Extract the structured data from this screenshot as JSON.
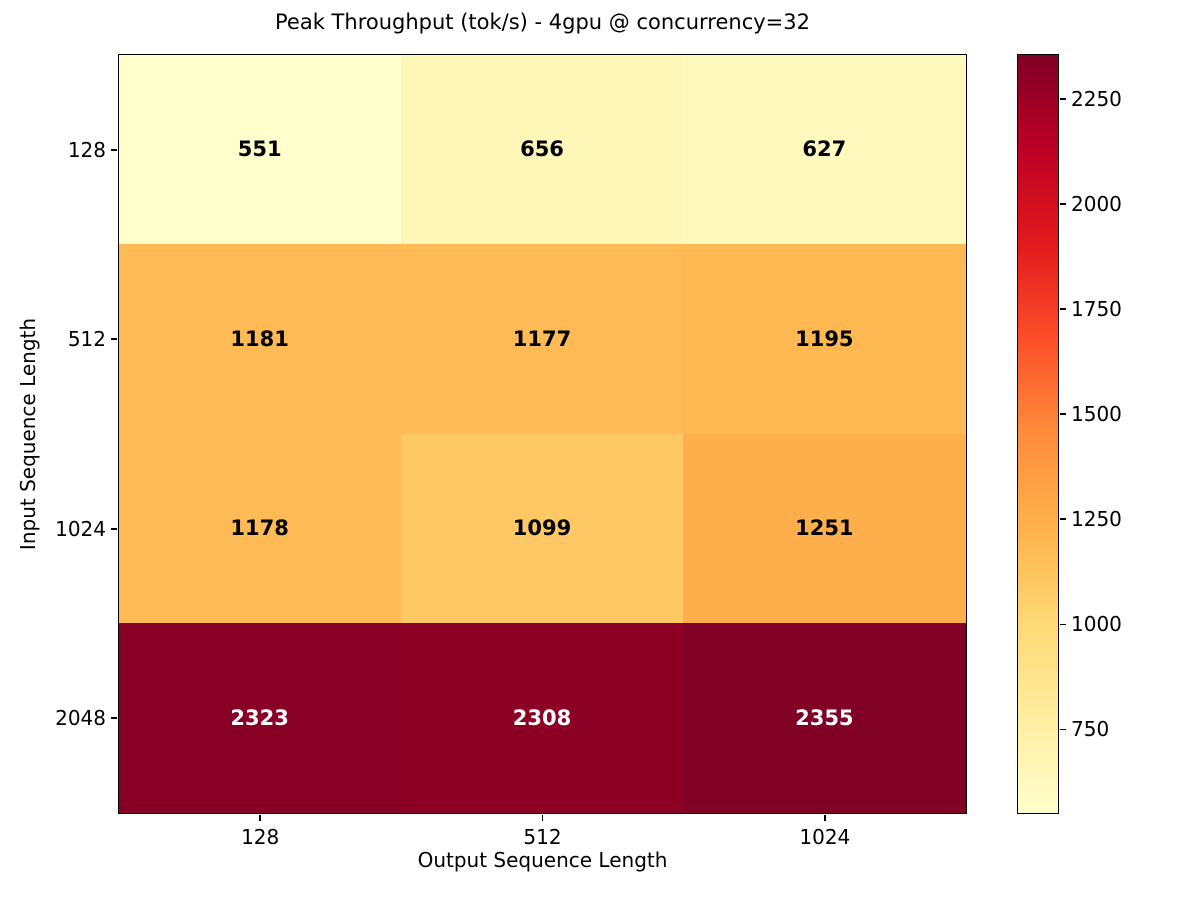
{
  "chart_data": {
    "type": "heatmap",
    "title": "Peak Throughput (tok/s) - 4gpu @ concurrency=32",
    "xlabel": "Output Sequence Length",
    "ylabel": "Input Sequence Length",
    "x_categories": [
      "128",
      "512",
      "1024"
    ],
    "y_categories": [
      "128",
      "512",
      "1024",
      "2048"
    ],
    "values": [
      [
        551,
        656,
        627
      ],
      [
        1181,
        1177,
        1195
      ],
      [
        1178,
        1099,
        1251
      ],
      [
        2323,
        2308,
        2355
      ]
    ],
    "vmin": 551,
    "vmax": 2355,
    "colormap": "YlOrRd",
    "colormap_stops": [
      "#ffffcc",
      "#ffeda0",
      "#fed976",
      "#feb24c",
      "#fd8d3c",
      "#fc4e2a",
      "#e31a1c",
      "#bd0026",
      "#800026"
    ],
    "colorbar_ticks": [
      750,
      1000,
      1250,
      1500,
      1750,
      2000,
      2250
    ],
    "annotation_color_dark": "#000000",
    "annotation_color_light": "#ffffff",
    "grid": false,
    "legend": "colorbar-right"
  }
}
